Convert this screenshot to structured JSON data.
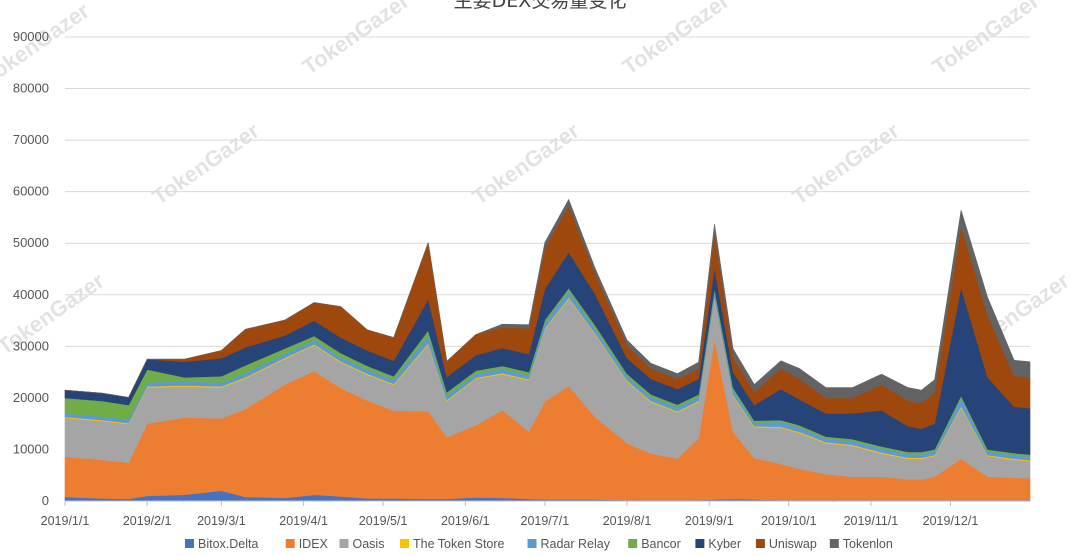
{
  "chart_data": {
    "type": "area",
    "stacked": true,
    "title": "主要DEX交易量变化",
    "xlabel": "",
    "ylabel": "",
    "ylim": [
      0,
      90000
    ],
    "yticks": [
      0,
      10000,
      20000,
      30000,
      40000,
      50000,
      60000,
      70000,
      80000,
      90000
    ],
    "xlim": [
      "2019-01-01",
      "2019-12-31"
    ],
    "xtick_labels": [
      "2019/1/1",
      "2019/2/1",
      "2019/3/1",
      "2019/4/1",
      "2019/5/1",
      "2019/6/1",
      "2019/7/1",
      "2019/8/1",
      "2019/9/1",
      "2019/10/1",
      "2019/11/1",
      "2019/12/1"
    ],
    "grid": "horizontal",
    "legend_position": "bottom",
    "watermark": "TokenGazer",
    "x": [
      "2019-01-01",
      "2019-01-15",
      "2019-01-25",
      "2019-02-01",
      "2019-02-15",
      "2019-03-01",
      "2019-03-10",
      "2019-03-25",
      "2019-04-05",
      "2019-04-15",
      "2019-04-25",
      "2019-05-05",
      "2019-05-18",
      "2019-05-25",
      "2019-06-05",
      "2019-06-15",
      "2019-06-25",
      "2019-07-01",
      "2019-07-10",
      "2019-07-20",
      "2019-08-01",
      "2019-08-10",
      "2019-08-20",
      "2019-08-28",
      "2019-09-03",
      "2019-09-10",
      "2019-09-18",
      "2019-09-28",
      "2019-10-05",
      "2019-10-15",
      "2019-10-25",
      "2019-11-05",
      "2019-11-15",
      "2019-11-20",
      "2019-11-25",
      "2019-12-05",
      "2019-12-15",
      "2019-12-25",
      "2019-12-31"
    ],
    "series": [
      {
        "name": "Bitox.Delta",
        "color": "#4472c4",
        "values": [
          800,
          500,
          400,
          1000,
          1200,
          2000,
          800,
          600,
          1200,
          900,
          500,
          500,
          400,
          400,
          700,
          600,
          400,
          300,
          300,
          300,
          200,
          200,
          200,
          200,
          300,
          400,
          300,
          200,
          200,
          200,
          200,
          200,
          200,
          200,
          200,
          200,
          200,
          200,
          200
        ]
      },
      {
        "name": "IDEX",
        "color": "#ed7d31",
        "values": [
          7800,
          7500,
          7000,
          14000,
          15000,
          14000,
          17000,
          22000,
          24000,
          21000,
          19000,
          17000,
          17000,
          12000,
          14000,
          17000,
          13000,
          19000,
          22000,
          16000,
          11000,
          9000,
          8000,
          12000,
          31000,
          13000,
          8000,
          7000,
          6000,
          5000,
          4500,
          4500,
          4000,
          4000,
          4500,
          8000,
          4500,
          4300,
          4200
        ]
      },
      {
        "name": "Oasis",
        "color": "#a5a5a5",
        "values": [
          7500,
          7500,
          7500,
          7000,
          6000,
          6000,
          6000,
          5000,
          5000,
          5000,
          5000,
          5000,
          13000,
          7000,
          9000,
          7000,
          10000,
          14000,
          17000,
          16000,
          12000,
          10000,
          9000,
          7000,
          8000,
          7000,
          6000,
          7000,
          7000,
          6000,
          6000,
          4500,
          4000,
          4000,
          4000,
          10000,
          4000,
          3500,
          3300
        ]
      },
      {
        "name": "The Token Store",
        "color": "#ffc000",
        "values": [
          200,
          200,
          200,
          200,
          200,
          200,
          200,
          200,
          200,
          200,
          200,
          200,
          200,
          200,
          200,
          200,
          200,
          200,
          200,
          200,
          200,
          200,
          200,
          200,
          200,
          200,
          200,
          200,
          200,
          200,
          200,
          200,
          200,
          200,
          200,
          200,
          200,
          200,
          200
        ]
      },
      {
        "name": "Radar Relay",
        "color": "#5b9bd5",
        "values": [
          700,
          700,
          700,
          800,
          800,
          800,
          800,
          800,
          800,
          800,
          800,
          800,
          1500,
          800,
          800,
          800,
          800,
          1000,
          1200,
          1000,
          800,
          800,
          800,
          800,
          1200,
          900,
          700,
          900,
          900,
          700,
          700,
          800,
          700,
          700,
          700,
          1500,
          700,
          700,
          700
        ]
      },
      {
        "name": "Bancor",
        "color": "#70ad47",
        "values": [
          3000,
          3000,
          2800,
          2500,
          800,
          1200,
          1500,
          1000,
          800,
          800,
          700,
          700,
          1000,
          700,
          600,
          600,
          600,
          600,
          600,
          600,
          500,
          500,
          500,
          500,
          500,
          500,
          400,
          400,
          400,
          400,
          400,
          400,
          400,
          400,
          400,
          500,
          400,
          400,
          400
        ]
      },
      {
        "name": "Kyber",
        "color": "#264478",
        "values": [
          1500,
          1500,
          1500,
          2000,
          3000,
          3500,
          3500,
          2500,
          3000,
          3000,
          3000,
          3000,
          6000,
          3000,
          3000,
          3500,
          3500,
          6000,
          7000,
          6000,
          3000,
          3000,
          3000,
          3000,
          4000,
          3000,
          3000,
          6000,
          5000,
          4500,
          5000,
          7000,
          5000,
          4500,
          5000,
          21000,
          14000,
          9000,
          9000
        ]
      },
      {
        "name": "Uniswap",
        "color": "#9e480e",
        "values": [
          0,
          0,
          0,
          0,
          500,
          1500,
          3500,
          3000,
          3500,
          6000,
          4000,
          4500,
          11000,
          3000,
          4000,
          4000,
          5000,
          8000,
          9000,
          4000,
          2500,
          2000,
          2000,
          2000,
          7000,
          3000,
          2500,
          4000,
          4000,
          3000,
          3000,
          5000,
          5000,
          5000,
          6000,
          12000,
          12000,
          6000,
          6000
        ]
      },
      {
        "name": "Tokenlon",
        "color": "#636363",
        "values": [
          0,
          0,
          0,
          0,
          0,
          0,
          0,
          0,
          0,
          0,
          0,
          0,
          0,
          0,
          0,
          600,
          700,
          1000,
          1200,
          1000,
          1000,
          1000,
          1000,
          1200,
          1500,
          1500,
          1500,
          1500,
          2000,
          2000,
          2000,
          2000,
          2500,
          2500,
          2500,
          3000,
          3500,
          3000,
          3000
        ]
      }
    ]
  }
}
